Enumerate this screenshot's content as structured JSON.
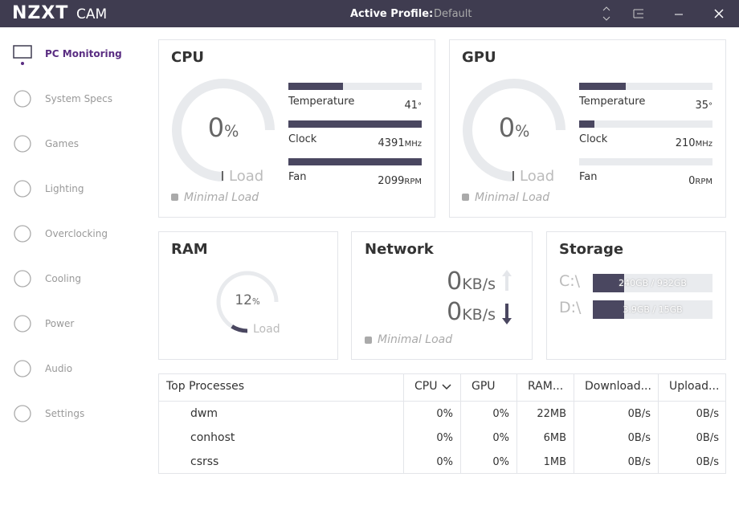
{
  "title_bar": {
    "brand": "NZXT",
    "app": "CAM",
    "profile_label": "Active Profile:",
    "profile": "Default"
  },
  "nav": [
    {
      "label": "PC Monitoring"
    },
    {
      "label": "System Specs"
    },
    {
      "label": "Games"
    },
    {
      "label": "Lighting"
    },
    {
      "label": "Overclocking"
    },
    {
      "label": "Cooling"
    },
    {
      "label": "Power"
    },
    {
      "label": "Audio"
    },
    {
      "label": "Settings"
    }
  ],
  "cpu": {
    "title": "CPU",
    "load": 0,
    "load_unit": "%",
    "load_label": "Load",
    "status": "Minimal Load",
    "stats": [
      {
        "label": "Temperature",
        "value": "41",
        "unit": "°"
      },
      {
        "label": "Clock",
        "value": "4391",
        "unit": "MHz"
      },
      {
        "label": "Fan",
        "value": "2099",
        "unit": "RPM"
      }
    ]
  },
  "gpu": {
    "title": "GPU",
    "load": 0,
    "load_unit": "%",
    "load_label": "Load",
    "status": "Minimal Load",
    "stats": [
      {
        "label": "Temperature",
        "value": "35",
        "unit": "°"
      },
      {
        "label": "Clock",
        "value": "210",
        "unit": "MHz"
      },
      {
        "label": "Fan",
        "value": "0",
        "unit": "RPM"
      }
    ]
  },
  "ram": {
    "title": "RAM",
    "load": 12,
    "load_unit": "%",
    "load_label": "Load"
  },
  "network": {
    "title": "Network",
    "down": "0",
    "down_unit": "KB/s",
    "up": "0",
    "up_unit": "KB/s",
    "status": "Minimal Load"
  },
  "storage": {
    "title": "Storage",
    "drives": [
      {
        "letter": "C:\\",
        "usage": "240GB / 932GB"
      },
      {
        "letter": "D:\\",
        "usage": "3.9GB / 15GB"
      }
    ]
  },
  "table": {
    "headers": [
      "Top Processes",
      "CPU",
      "GPU",
      "RAM...",
      "Download...",
      "Upload..."
    ],
    "rows": [
      [
        "dwm",
        "0%",
        "0%",
        "22MB",
        "0B/s",
        "0B/s"
      ],
      [
        "conhost",
        "0%",
        "0%",
        "6MB",
        "0B/s",
        "0B/s"
      ],
      [
        "csrss",
        "0%",
        "0%",
        "1MB",
        "0B/s",
        "0B/s"
      ]
    ]
  }
}
